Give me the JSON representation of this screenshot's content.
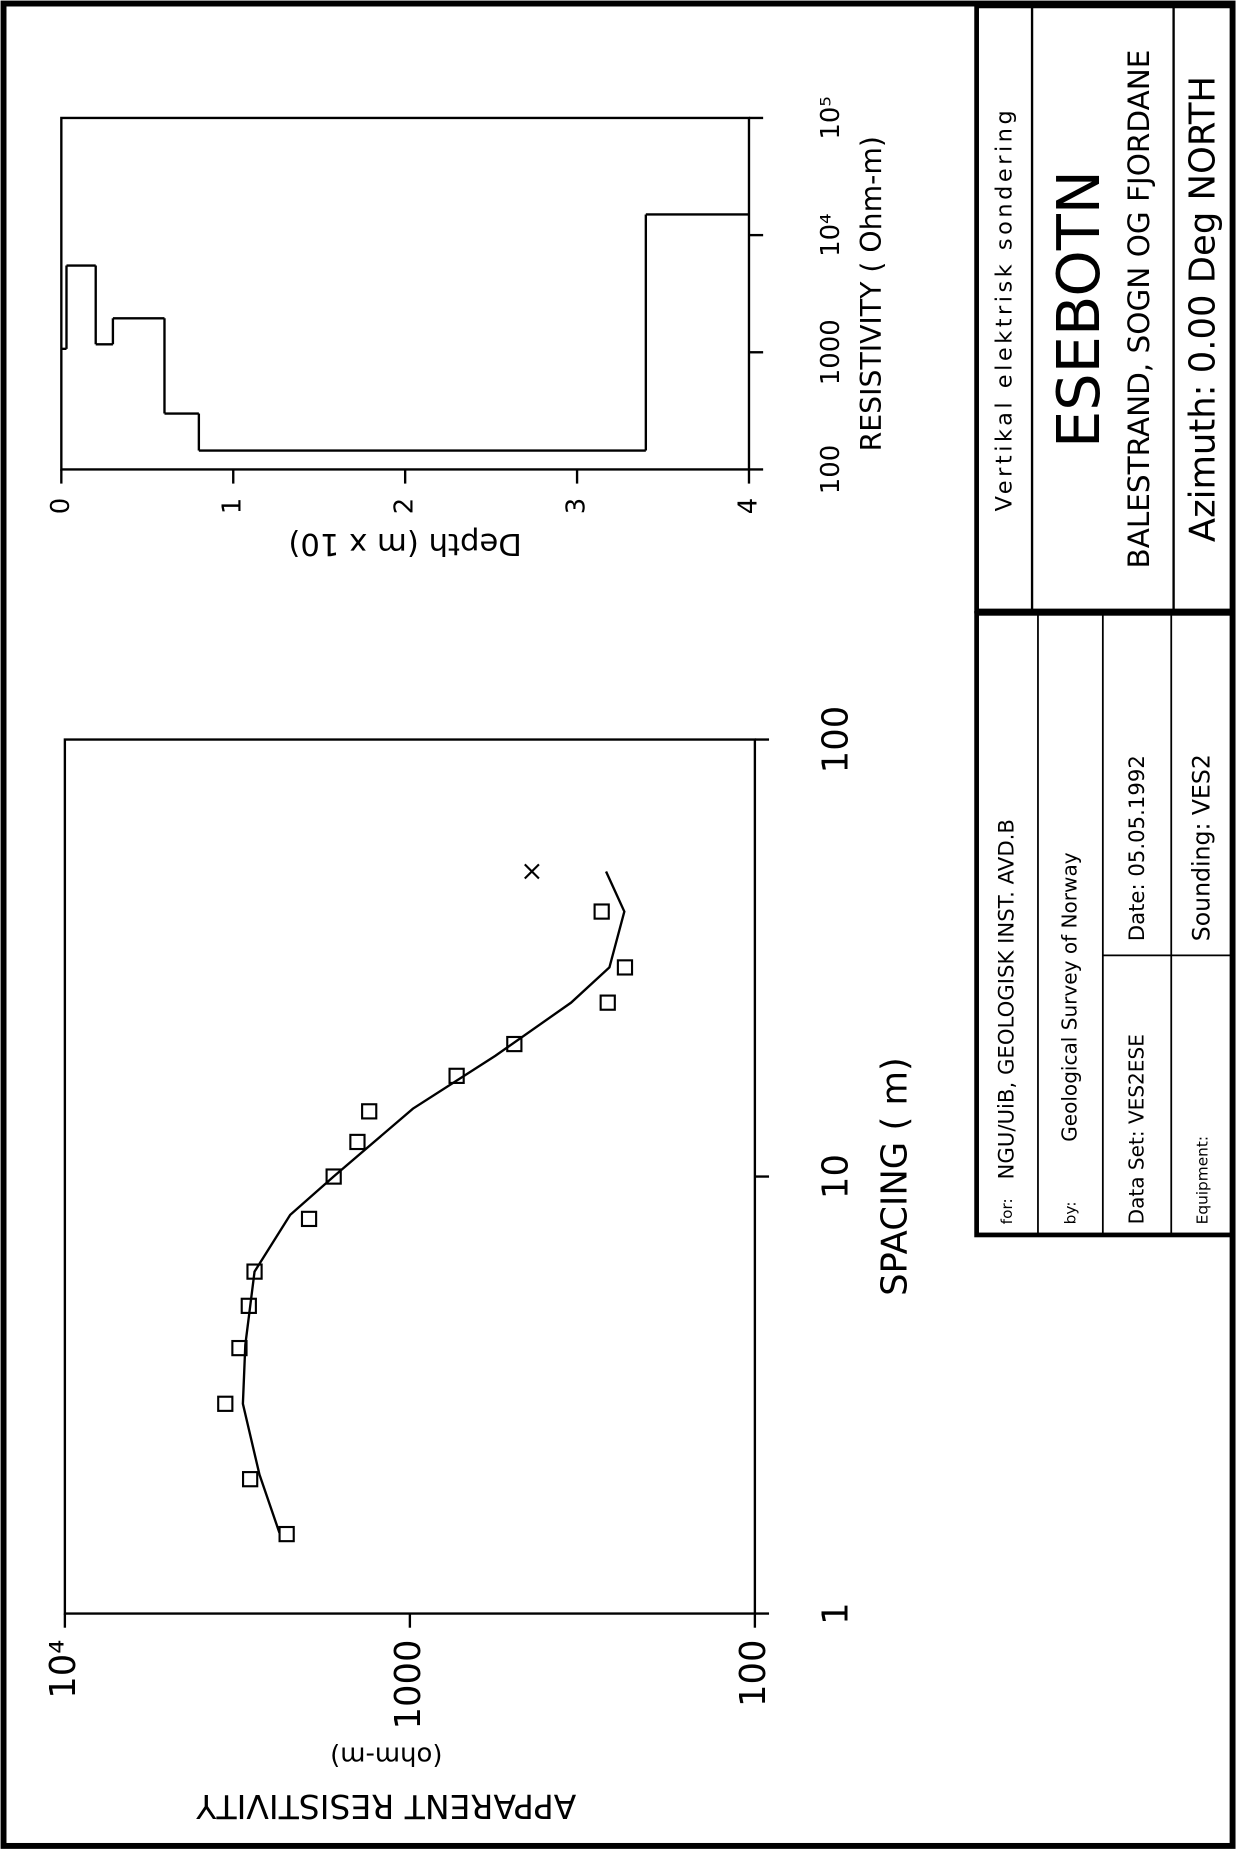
{
  "title_block": {
    "survey_type": "Vertikal elektrisk sondering",
    "site": "ESEBOTN",
    "location": "BALESTRAND, SOGN OG FJORDANE",
    "azimuth": "Azimuth: 0.00 Deg NORTH"
  },
  "info_block": {
    "for_label": "for:",
    "for": "NGU/UiB, GEOLOGISK INST. AVD.B",
    "by_label": "by:",
    "by": "Geological Survey of Norway",
    "data_set": "Data Set: VES2ESE",
    "date": "Date: 05.05.1992",
    "equipment": "Equipment:",
    "sounding": "Sounding: VES2"
  },
  "chart_data": [
    {
      "type": "scatter",
      "x_label": "SPACING ( m)",
      "y_label": "APPARENT RESISTIVITY",
      "y_unit": "(ohm-m)",
      "x_scale": "log",
      "y_scale": "log",
      "xlim": [
        1,
        100
      ],
      "ylim": [
        100,
        10000
      ],
      "xticks": [
        1,
        10,
        100
      ],
      "yticks": [
        100,
        1000,
        {
          "value": 10000,
          "label": "10⁴"
        }
      ],
      "series": [
        {
          "marker": "square",
          "color": "#000000",
          "x": [
            1.52,
            2.03,
            3.02,
            4.05,
            5.06,
            6.06,
            8.0,
            10,
            12.0,
            14.1,
            17.0,
            20.1,
            25.0,
            30.1,
            40.4
          ],
          "values": [
            2276,
            2904,
            3428,
            3119,
            2930,
            2820,
            1960,
            1663,
            1419,
            1312,
            732,
            498,
            267,
            238,
            278
          ]
        },
        {
          "marker": "cross",
          "color": "#000000",
          "x": [
            49.9
          ],
          "values": [
            443
          ]
        },
        {
          "marker": "line",
          "color": "#000000",
          "x": [
            1.53,
            2.08,
            3.02,
            4.12,
            6.06,
            8.17,
            10,
            14.3,
            18.9,
            25,
            30.1,
            40.4,
            49.9
          ],
          "values": [
            2388,
            2729,
            3048,
            2999,
            2820,
            2223,
            1663,
            980,
            565,
            341,
            264,
            239,
            270
          ]
        }
      ]
    },
    {
      "type": "step",
      "x_label": "RESISTIVITY ( Ohm-m)",
      "y_label": "Depth (m x 10)",
      "x_scale": "log",
      "y_inverted": true,
      "xlim": [
        100,
        100000
      ],
      "ylim": [
        0,
        4
      ],
      "xticks": [
        100,
        1000,
        {
          "value": 10000,
          "label": "10⁴"
        },
        {
          "value": 100000,
          "label": "10⁵"
        }
      ],
      "yticks": [
        0,
        1,
        2,
        3,
        4
      ],
      "color": "#000000",
      "resistivity": [
        1070,
        5500,
        1170,
        1950,
        300,
        145,
        15000
      ],
      "depth_boundaries": [
        0.03,
        0.2,
        0.3,
        0.6,
        0.8,
        3.4
      ]
    }
  ]
}
